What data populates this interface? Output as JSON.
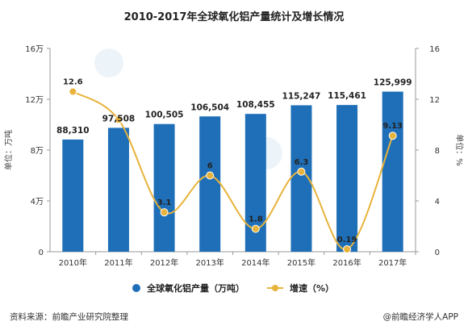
{
  "chart_data": {
    "type": "bar",
    "title": "2010-2017年全球氧化铝产量统计及增长情况",
    "categories": [
      "2010年",
      "2011年",
      "2012年",
      "2013年",
      "2014年",
      "2015年",
      "2016年",
      "2017年"
    ],
    "series": [
      {
        "name": "全球氧化铝产量（万吨）",
        "type": "bar",
        "axis": "left",
        "color": "#1f6fb8",
        "values": [
          88310,
          97508,
          100505,
          106504,
          108455,
          115247,
          115461,
          125999
        ],
        "labels": [
          "88,310",
          "97,508",
          "100,505",
          "106,504",
          "108,455",
          "115,247",
          "115,461",
          "125,999"
        ]
      },
      {
        "name": "增速（%）",
        "type": "line",
        "axis": "right",
        "color": "#e8b33b",
        "values": [
          12.6,
          10.4,
          3.1,
          6,
          1.8,
          6.3,
          0.19,
          9.13
        ],
        "labels": [
          "12.6",
          "",
          "3.1",
          "6",
          "1.8",
          "6.3",
          "0.19",
          "9.13"
        ]
      }
    ],
    "y_left": {
      "label": "单位：万吨",
      "range": [
        0,
        160000
      ],
      "ticks": [
        0,
        40000,
        80000,
        120000,
        160000
      ],
      "tick_labels": [
        "0",
        "4万",
        "8万",
        "12万",
        "16万"
      ]
    },
    "y_right": {
      "label": "单位：%",
      "range": [
        0,
        16
      ],
      "ticks": [
        0,
        4,
        8,
        12,
        16
      ],
      "tick_labels": [
        "0",
        "4",
        "8",
        "12",
        "16"
      ]
    },
    "grid": false,
    "legend_position": "bottom"
  },
  "footer": {
    "source": "资料来源：前瞻产业研究院整理",
    "brand": "@前瞻经济学人APP"
  },
  "watermark_text": "前瞻产业研究院"
}
